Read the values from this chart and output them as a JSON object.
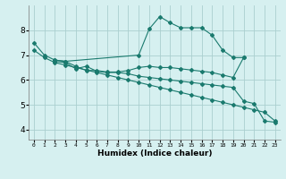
{
  "title": "",
  "xlabel": "Humidex (Indice chaleur)",
  "ylabel": "",
  "bg_color": "#d6f0f0",
  "grid_color": "#aacfcf",
  "line_color": "#1a7a6e",
  "xlim": [
    -0.5,
    23.5
  ],
  "ylim": [
    3.6,
    9.0
  ],
  "yticks": [
    4,
    5,
    6,
    7,
    8
  ],
  "xticks": [
    0,
    1,
    2,
    3,
    4,
    5,
    6,
    7,
    8,
    9,
    10,
    11,
    12,
    13,
    14,
    15,
    16,
    17,
    18,
    19,
    20,
    21,
    22,
    23
  ],
  "series": [
    {
      "x": [
        0,
        1,
        2,
        3,
        10,
        11,
        12,
        13,
        14,
        15,
        16,
        17,
        18,
        19,
        20
      ],
      "y": [
        7.5,
        7.0,
        6.8,
        6.75,
        7.0,
        8.05,
        8.55,
        8.3,
        8.1,
        8.1,
        8.1,
        7.8,
        7.2,
        6.9,
        6.9
      ]
    },
    {
      "x": [
        2,
        3,
        4,
        5,
        6,
        7,
        8,
        9,
        10,
        11,
        12,
        13,
        14,
        15,
        16,
        17,
        18,
        19,
        20
      ],
      "y": [
        6.8,
        6.75,
        6.55,
        6.38,
        6.38,
        6.32,
        6.32,
        6.38,
        6.5,
        6.55,
        6.5,
        6.5,
        6.45,
        6.4,
        6.35,
        6.3,
        6.2,
        6.1,
        6.9
      ]
    },
    {
      "x": [
        2,
        3,
        4,
        5,
        6,
        7,
        8,
        9,
        10,
        11,
        12,
        13,
        14,
        15,
        16,
        17,
        18,
        19,
        20,
        21,
        22,
        23
      ],
      "y": [
        6.75,
        6.7,
        6.45,
        6.55,
        6.35,
        6.3,
        6.3,
        6.25,
        6.15,
        6.1,
        6.05,
        6.0,
        5.95,
        5.9,
        5.85,
        5.8,
        5.75,
        5.7,
        5.15,
        5.05,
        4.35,
        4.3
      ]
    },
    {
      "x": [
        0,
        1,
        2,
        3,
        4,
        5,
        6,
        7,
        8,
        9,
        10,
        11,
        12,
        13,
        14,
        15,
        16,
        17,
        18,
        19,
        20,
        21,
        22,
        23
      ],
      "y": [
        7.2,
        6.9,
        6.7,
        6.6,
        6.5,
        6.4,
        6.3,
        6.2,
        6.1,
        6.0,
        5.9,
        5.8,
        5.7,
        5.6,
        5.5,
        5.4,
        5.3,
        5.2,
        5.1,
        5.0,
        4.9,
        4.8,
        4.7,
        4.35
      ]
    }
  ]
}
